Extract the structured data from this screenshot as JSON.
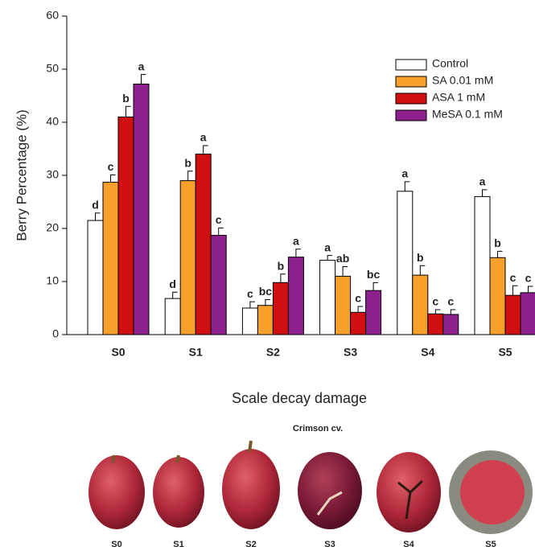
{
  "chart_data": {
    "type": "bar",
    "x_label": "Scale decay damage",
    "y_label": "Berry Percentage (%)",
    "categories": [
      "S0",
      "S1",
      "S2",
      "S3",
      "S4",
      "S5"
    ],
    "ylim": [
      0,
      60
    ],
    "yticks": [
      0,
      10,
      20,
      30,
      40,
      50,
      60
    ],
    "legend": "upper right",
    "series": [
      {
        "name": "Control",
        "color": "#ffffff",
        "values": [
          21.5,
          6.8,
          5.0,
          14.0,
          27.0,
          26.0
        ],
        "errors": [
          1.4,
          1.2,
          1.2,
          0.9,
          1.8,
          1.3
        ],
        "letters": [
          "d",
          "d",
          "c",
          "a",
          "a",
          "a"
        ]
      },
      {
        "name": "SA 0.01 mM",
        "color": "#f7a12c",
        "values": [
          28.7,
          29.0,
          5.5,
          11.0,
          11.2,
          14.5
        ],
        "errors": [
          1.4,
          1.8,
          1.1,
          1.8,
          1.8,
          1.2
        ],
        "letters": [
          "c",
          "b",
          "bc",
          "ab",
          "b",
          "b"
        ]
      },
      {
        "name": "ASA 1 mM",
        "color": "#d01010",
        "values": [
          41.0,
          34.0,
          9.8,
          4.2,
          3.9,
          7.4
        ],
        "errors": [
          2.0,
          1.6,
          1.6,
          1.1,
          0.8,
          1.8
        ],
        "letters": [
          "b",
          "a",
          "b",
          "c",
          "c",
          "c"
        ]
      },
      {
        "name": "MeSA 0.1 mM",
        "color": "#8e1f8e",
        "values": [
          47.2,
          18.7,
          14.6,
          8.3,
          3.8,
          7.9
        ],
        "errors": [
          1.8,
          1.4,
          1.5,
          1.5,
          0.9,
          1.2
        ],
        "letters": [
          "a",
          "c",
          "a",
          "bc",
          "c",
          "c"
        ]
      }
    ]
  },
  "photos": {
    "title": "Crimson cv.",
    "labels": [
      "S0",
      "S1",
      "S2",
      "S3",
      "S4",
      "S5"
    ]
  }
}
